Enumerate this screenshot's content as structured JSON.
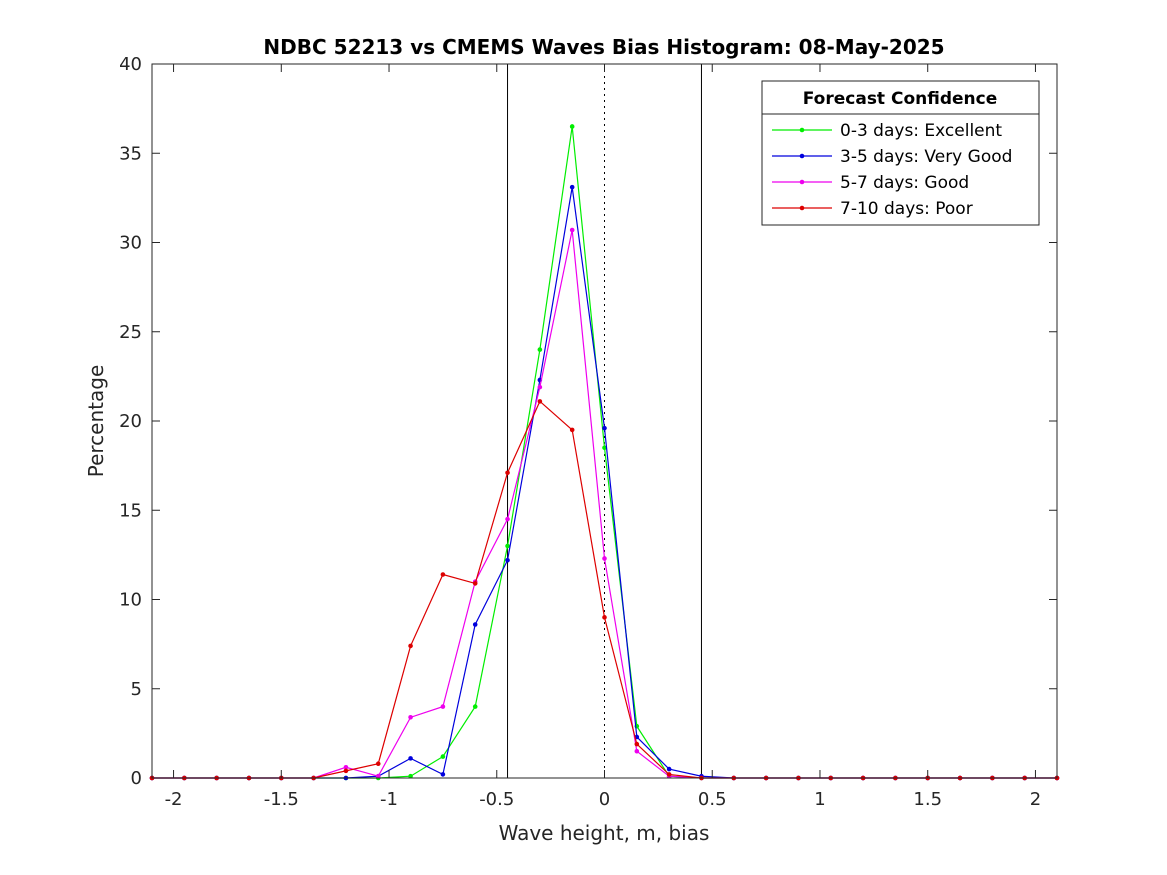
{
  "chart_data": {
    "type": "line",
    "title": "NDBC 52213 vs CMEMS Waves Bias Histogram: 08-May-2025",
    "xlabel": "Wave height, m, bias",
    "ylabel": "Percentage",
    "xlim": [
      -2.1,
      2.1
    ],
    "ylim": [
      0,
      40
    ],
    "xticks": [
      -2,
      -1.5,
      -1,
      -0.5,
      0,
      0.5,
      1,
      1.5,
      2
    ],
    "xtick_labels": [
      "-2",
      "-1.5",
      "-1",
      "-0.5",
      "0",
      "0.5",
      "1",
      "1.5",
      "2"
    ],
    "yticks": [
      0,
      5,
      10,
      15,
      20,
      25,
      30,
      35,
      40
    ],
    "ytick_labels": [
      "0",
      "5",
      "10",
      "15",
      "20",
      "25",
      "30",
      "35",
      "40"
    ],
    "grid": false,
    "reference_lines": [
      {
        "x": -0.45,
        "style": "solid"
      },
      {
        "x": 0,
        "style": "dotted"
      },
      {
        "x": 0.45,
        "style": "solid"
      }
    ],
    "legend": {
      "title": "Forecast Confidence",
      "placement": "top-right"
    },
    "x": [
      -2.1,
      -1.95,
      -1.8,
      -1.65,
      -1.5,
      -1.35,
      -1.2,
      -1.05,
      -0.9,
      -0.75,
      -0.6,
      -0.45,
      -0.3,
      -0.15,
      0,
      0.15,
      0.3,
      0.45,
      0.6,
      0.75,
      0.9,
      1.05,
      1.2,
      1.35,
      1.5,
      1.65,
      1.8,
      1.95,
      2.1
    ],
    "series": [
      {
        "name": "0-3 days: Excellent",
        "color": "#00ee00",
        "values": [
          0,
          0,
          0,
          0,
          0,
          0,
          0,
          0,
          0.1,
          1.2,
          4.0,
          13.0,
          24.0,
          36.5,
          18.5,
          2.9,
          0.1,
          0,
          0,
          0,
          0,
          0,
          0,
          0,
          0,
          0,
          0,
          0,
          0
        ]
      },
      {
        "name": "3-5 days: Very Good",
        "color": "#0000dd",
        "values": [
          0,
          0,
          0,
          0,
          0,
          0,
          0,
          0.1,
          1.1,
          0.2,
          8.6,
          12.2,
          22.3,
          33.1,
          19.6,
          2.3,
          0.5,
          0.1,
          0,
          0,
          0,
          0,
          0,
          0,
          0,
          0,
          0,
          0,
          0
        ]
      },
      {
        "name": "5-7 days: Good",
        "color": "#ee00ee",
        "values": [
          0,
          0,
          0,
          0,
          0,
          0,
          0.6,
          0.1,
          3.4,
          4.0,
          11.0,
          14.5,
          21.9,
          30.7,
          12.3,
          1.5,
          0.1,
          0,
          0,
          0,
          0,
          0,
          0,
          0,
          0,
          0,
          0,
          0,
          0
        ]
      },
      {
        "name": "7-10 days: Poor",
        "color": "#dd0000",
        "values": [
          0,
          0,
          0,
          0,
          0,
          0,
          0.4,
          0.8,
          7.4,
          11.4,
          10.9,
          17.1,
          21.1,
          19.5,
          9.0,
          1.9,
          0.2,
          0,
          0,
          0,
          0,
          0,
          0,
          0,
          0,
          0,
          0,
          0,
          0
        ]
      }
    ]
  }
}
